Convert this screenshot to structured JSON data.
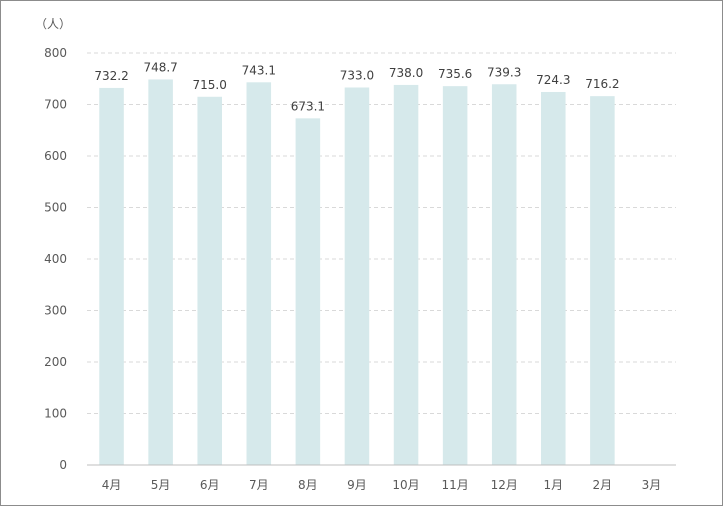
{
  "chart_data": {
    "type": "bar",
    "unit_label": "（人）",
    "categories": [
      "4月",
      "5月",
      "6月",
      "7月",
      "8月",
      "9月",
      "10月",
      "11月",
      "12月",
      "1月",
      "2月",
      "3月"
    ],
    "values": [
      732.2,
      748.7,
      715.0,
      743.1,
      673.1,
      733.0,
      738.0,
      735.6,
      739.3,
      724.3,
      716.2,
      null
    ],
    "value_labels": [
      "732.2",
      "748.7",
      "715.0",
      "743.1",
      "673.1",
      "733.0",
      "738.0",
      "735.6",
      "739.3",
      "724.3",
      "716.2",
      ""
    ],
    "y_ticks": [
      "0",
      "100",
      "200",
      "300",
      "400",
      "500",
      "600",
      "700",
      "800"
    ],
    "ylim": [
      0,
      800
    ],
    "grid": true,
    "legend": "none",
    "colors": {
      "bar": "#d6e9eb",
      "grid": "#d9d9d9",
      "axis": "#bfbfbf"
    }
  }
}
